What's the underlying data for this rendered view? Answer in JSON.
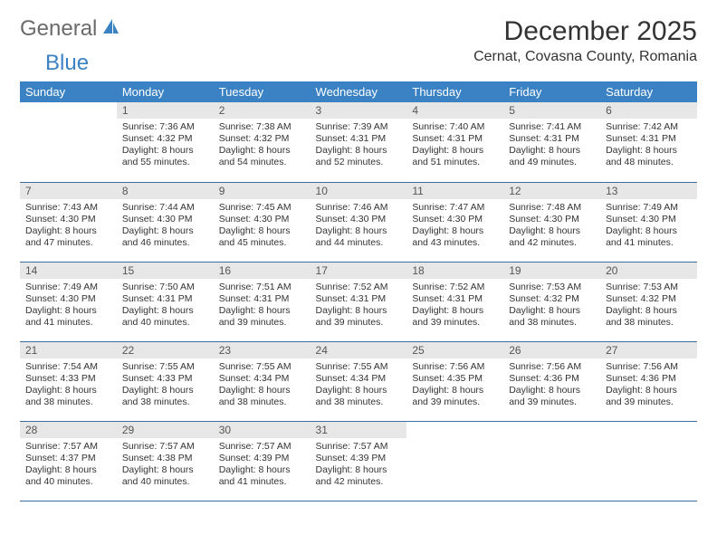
{
  "logo": {
    "part1": "General",
    "part2": "Blue"
  },
  "title": "December 2025",
  "location": "Cernat, Covasna County, Romania",
  "colors": {
    "header_bg": "#3b82c4",
    "header_fg": "#ffffff",
    "daynum_bg": "#e7e7e7",
    "row_border": "#3b6fa0",
    "logo_gray": "#6b6b6b",
    "logo_blue": "#3b82c4"
  },
  "typography": {
    "title_fontsize": 30,
    "location_fontsize": 16,
    "dayheader_fontsize": 13,
    "daytext_fontsize": 10.5
  },
  "calendar": {
    "type": "table",
    "columns": [
      "Sunday",
      "Monday",
      "Tuesday",
      "Wednesday",
      "Thursday",
      "Friday",
      "Saturday"
    ],
    "first_weekday_index": 1,
    "days": [
      {
        "n": 1,
        "sunrise": "7:36 AM",
        "sunset": "4:32 PM",
        "daylight": "8 hours and 55 minutes."
      },
      {
        "n": 2,
        "sunrise": "7:38 AM",
        "sunset": "4:32 PM",
        "daylight": "8 hours and 54 minutes."
      },
      {
        "n": 3,
        "sunrise": "7:39 AM",
        "sunset": "4:31 PM",
        "daylight": "8 hours and 52 minutes."
      },
      {
        "n": 4,
        "sunrise": "7:40 AM",
        "sunset": "4:31 PM",
        "daylight": "8 hours and 51 minutes."
      },
      {
        "n": 5,
        "sunrise": "7:41 AM",
        "sunset": "4:31 PM",
        "daylight": "8 hours and 49 minutes."
      },
      {
        "n": 6,
        "sunrise": "7:42 AM",
        "sunset": "4:31 PM",
        "daylight": "8 hours and 48 minutes."
      },
      {
        "n": 7,
        "sunrise": "7:43 AM",
        "sunset": "4:30 PM",
        "daylight": "8 hours and 47 minutes."
      },
      {
        "n": 8,
        "sunrise": "7:44 AM",
        "sunset": "4:30 PM",
        "daylight": "8 hours and 46 minutes."
      },
      {
        "n": 9,
        "sunrise": "7:45 AM",
        "sunset": "4:30 PM",
        "daylight": "8 hours and 45 minutes."
      },
      {
        "n": 10,
        "sunrise": "7:46 AM",
        "sunset": "4:30 PM",
        "daylight": "8 hours and 44 minutes."
      },
      {
        "n": 11,
        "sunrise": "7:47 AM",
        "sunset": "4:30 PM",
        "daylight": "8 hours and 43 minutes."
      },
      {
        "n": 12,
        "sunrise": "7:48 AM",
        "sunset": "4:30 PM",
        "daylight": "8 hours and 42 minutes."
      },
      {
        "n": 13,
        "sunrise": "7:49 AM",
        "sunset": "4:30 PM",
        "daylight": "8 hours and 41 minutes."
      },
      {
        "n": 14,
        "sunrise": "7:49 AM",
        "sunset": "4:30 PM",
        "daylight": "8 hours and 41 minutes."
      },
      {
        "n": 15,
        "sunrise": "7:50 AM",
        "sunset": "4:31 PM",
        "daylight": "8 hours and 40 minutes."
      },
      {
        "n": 16,
        "sunrise": "7:51 AM",
        "sunset": "4:31 PM",
        "daylight": "8 hours and 39 minutes."
      },
      {
        "n": 17,
        "sunrise": "7:52 AM",
        "sunset": "4:31 PM",
        "daylight": "8 hours and 39 minutes."
      },
      {
        "n": 18,
        "sunrise": "7:52 AM",
        "sunset": "4:31 PM",
        "daylight": "8 hours and 39 minutes."
      },
      {
        "n": 19,
        "sunrise": "7:53 AM",
        "sunset": "4:32 PM",
        "daylight": "8 hours and 38 minutes."
      },
      {
        "n": 20,
        "sunrise": "7:53 AM",
        "sunset": "4:32 PM",
        "daylight": "8 hours and 38 minutes."
      },
      {
        "n": 21,
        "sunrise": "7:54 AM",
        "sunset": "4:33 PM",
        "daylight": "8 hours and 38 minutes."
      },
      {
        "n": 22,
        "sunrise": "7:55 AM",
        "sunset": "4:33 PM",
        "daylight": "8 hours and 38 minutes."
      },
      {
        "n": 23,
        "sunrise": "7:55 AM",
        "sunset": "4:34 PM",
        "daylight": "8 hours and 38 minutes."
      },
      {
        "n": 24,
        "sunrise": "7:55 AM",
        "sunset": "4:34 PM",
        "daylight": "8 hours and 38 minutes."
      },
      {
        "n": 25,
        "sunrise": "7:56 AM",
        "sunset": "4:35 PM",
        "daylight": "8 hours and 39 minutes."
      },
      {
        "n": 26,
        "sunrise": "7:56 AM",
        "sunset": "4:36 PM",
        "daylight": "8 hours and 39 minutes."
      },
      {
        "n": 27,
        "sunrise": "7:56 AM",
        "sunset": "4:36 PM",
        "daylight": "8 hours and 39 minutes."
      },
      {
        "n": 28,
        "sunrise": "7:57 AM",
        "sunset": "4:37 PM",
        "daylight": "8 hours and 40 minutes."
      },
      {
        "n": 29,
        "sunrise": "7:57 AM",
        "sunset": "4:38 PM",
        "daylight": "8 hours and 40 minutes."
      },
      {
        "n": 30,
        "sunrise": "7:57 AM",
        "sunset": "4:39 PM",
        "daylight": "8 hours and 41 minutes."
      },
      {
        "n": 31,
        "sunrise": "7:57 AM",
        "sunset": "4:39 PM",
        "daylight": "8 hours and 42 minutes."
      }
    ],
    "labels": {
      "sunrise": "Sunrise:",
      "sunset": "Sunset:",
      "daylight": "Daylight:"
    }
  }
}
